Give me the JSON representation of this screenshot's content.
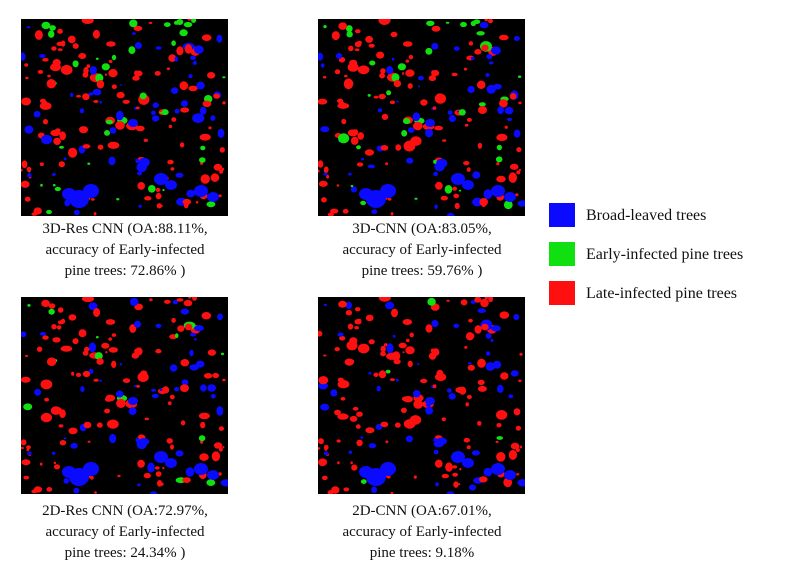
{
  "panels": [
    {
      "id": "3d-res-cnn",
      "caption": [
        "3D-Res CNN (OA:88.11%,",
        "accuracy of Early-infected",
        "pine trees: 72.86% )"
      ],
      "green_share": 0.22,
      "red_share": 0.5
    },
    {
      "id": "3d-cnn",
      "caption": [
        "3D-CNN (OA:83.05%,",
        "accuracy of Early-infected",
        "pine trees: 59.76% )"
      ],
      "green_share": 0.17,
      "red_share": 0.52
    },
    {
      "id": "2d-res-cnn",
      "caption": [
        "2D-Res CNN (OA:72.97%,",
        "accuracy of Early-infected",
        "pine trees: 24.34% )"
      ],
      "green_share": 0.07,
      "red_share": 0.57
    },
    {
      "id": "2d-cnn",
      "caption": [
        "2D-CNN (OA:67.01%,",
        "accuracy of Early-infected",
        "pine trees: 9.18%"
      ],
      "green_share": 0.02,
      "red_share": 0.6
    }
  ],
  "legend": [
    {
      "label": "Broad-leaved trees",
      "color": "#0a0aff"
    },
    {
      "label": "Early-infected pine trees",
      "color": "#10e010"
    },
    {
      "label": "Late-infected pine trees",
      "color": "#ff1010"
    }
  ],
  "colors": {
    "background": "#000000",
    "broad_leaved": "#0a0aff",
    "early_infected": "#10e010",
    "late_infected": "#ff1010"
  }
}
